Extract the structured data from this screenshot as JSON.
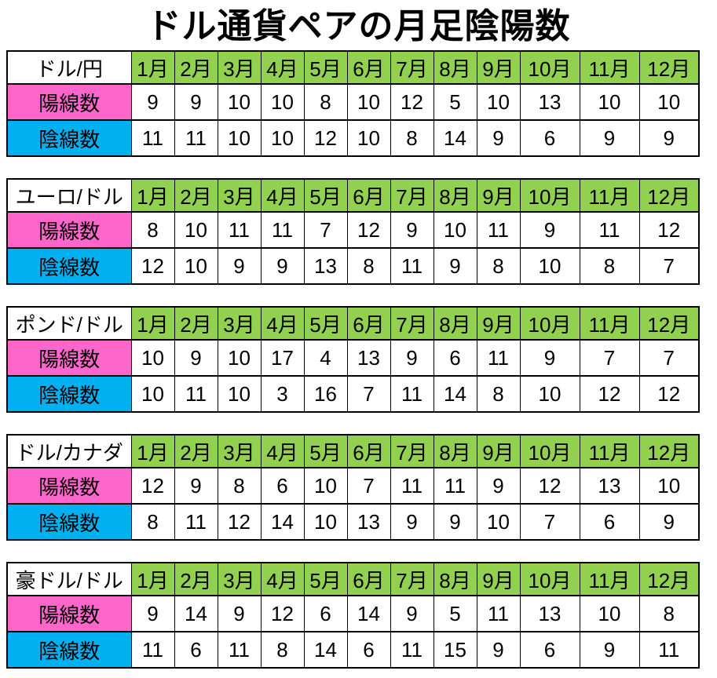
{
  "page": {
    "title": "ドル通貨ペアの月足陰陽数"
  },
  "colors": {
    "month_header_green": "#92D050",
    "bullish_label_pink": "#FF66CC",
    "bearish_label_cyan": "#00B0F0",
    "border_black": "#000000",
    "text_black": "#000000"
  },
  "chart_data": [
    {
      "type": "table",
      "title": "ドル/円",
      "columns": [
        "1月",
        "2月",
        "3月",
        "4月",
        "5月",
        "6月",
        "7月",
        "8月",
        "9月",
        "10月",
        "11月",
        "12月"
      ],
      "rows": [
        {
          "label": "陽線数",
          "values": [
            9,
            9,
            10,
            10,
            8,
            10,
            12,
            5,
            10,
            13,
            10,
            10
          ]
        },
        {
          "label": "陰線数",
          "values": [
            11,
            11,
            10,
            10,
            12,
            10,
            8,
            14,
            9,
            6,
            9,
            9
          ]
        }
      ]
    },
    {
      "type": "table",
      "title": "ユーロ/ドル",
      "columns": [
        "1月",
        "2月",
        "3月",
        "4月",
        "5月",
        "6月",
        "7月",
        "8月",
        "9月",
        "10月",
        "11月",
        "12月"
      ],
      "rows": [
        {
          "label": "陽線数",
          "values": [
            8,
            10,
            11,
            11,
            7,
            12,
            9,
            10,
            11,
            9,
            11,
            12
          ]
        },
        {
          "label": "陰線数",
          "values": [
            12,
            10,
            9,
            9,
            13,
            8,
            11,
            9,
            8,
            10,
            8,
            7
          ]
        }
      ]
    },
    {
      "type": "table",
      "title": "ポンド/ドル",
      "columns": [
        "1月",
        "2月",
        "3月",
        "4月",
        "5月",
        "6月",
        "7月",
        "8月",
        "9月",
        "10月",
        "11月",
        "12月"
      ],
      "rows": [
        {
          "label": "陽線数",
          "values": [
            10,
            9,
            10,
            17,
            4,
            13,
            9,
            6,
            11,
            9,
            7,
            7
          ]
        },
        {
          "label": "陰線数",
          "values": [
            10,
            11,
            10,
            3,
            16,
            7,
            11,
            14,
            8,
            10,
            12,
            12
          ]
        }
      ]
    },
    {
      "type": "table",
      "title": "ドル/カナダ",
      "columns": [
        "1月",
        "2月",
        "3月",
        "4月",
        "5月",
        "6月",
        "7月",
        "8月",
        "9月",
        "10月",
        "11月",
        "12月"
      ],
      "rows": [
        {
          "label": "陽線数",
          "values": [
            12,
            9,
            8,
            6,
            10,
            7,
            11,
            11,
            9,
            12,
            13,
            10
          ]
        },
        {
          "label": "陰線数",
          "values": [
            8,
            11,
            12,
            14,
            10,
            13,
            9,
            9,
            10,
            7,
            6,
            9
          ]
        }
      ]
    },
    {
      "type": "table",
      "title": "豪ドル/ドル",
      "columns": [
        "1月",
        "2月",
        "3月",
        "4月",
        "5月",
        "6月",
        "7月",
        "8月",
        "9月",
        "10月",
        "11月",
        "12月"
      ],
      "rows": [
        {
          "label": "陽線数",
          "values": [
            9,
            14,
            9,
            12,
            6,
            14,
            9,
            5,
            11,
            13,
            10,
            8
          ]
        },
        {
          "label": "陰線数",
          "values": [
            11,
            6,
            11,
            8,
            14,
            6,
            11,
            15,
            9,
            6,
            9,
            11
          ]
        }
      ]
    }
  ]
}
